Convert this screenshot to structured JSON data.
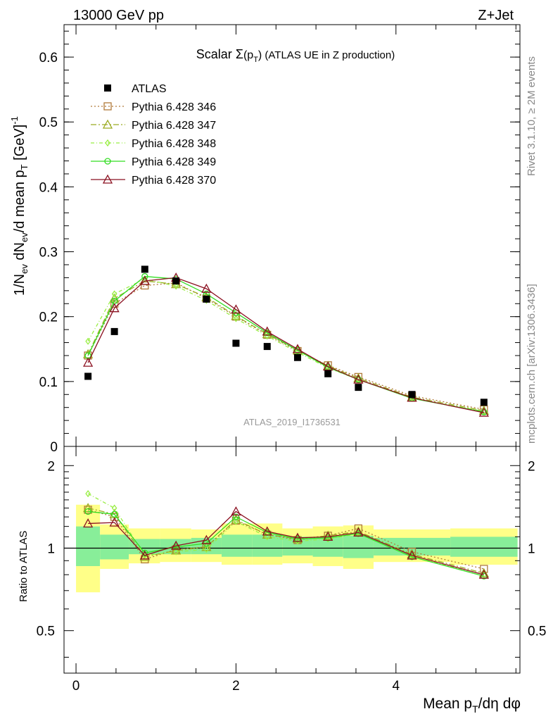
{
  "header": {
    "left": "13000 GeV pp",
    "right": "Z+Jet"
  },
  "side_labels": {
    "rivet": "Rivet 3.1.10, ≥ 2M events",
    "mcplots": "mcplots.cern.ch [arXiv:1306.3436]"
  },
  "chart_data": [
    {
      "type": "scatter",
      "panel": "main",
      "title": "Scalar Σ(pT) (ATLAS UE in Z production)",
      "watermark": "ATLAS_2019_I1736531",
      "xlabel": "Mean pT/dη dφ",
      "ylabel": "1/Nev dNev/d mean pT [GeV]^-1",
      "xlim": [
        -0.15,
        5.55
      ],
      "ylim": [
        0,
        0.65
      ],
      "legend_position": "top-left",
      "x_ticks": [
        "0",
        "2",
        "4"
      ],
      "y_ticks": [
        "0",
        "0.1",
        "0.2",
        "0.3",
        "0.4",
        "0.5",
        "0.6"
      ],
      "x": [
        0.15,
        0.48,
        0.86,
        1.25,
        1.63,
        2.0,
        2.39,
        2.77,
        3.15,
        3.53,
        4.2,
        5.1
      ],
      "series": [
        {
          "name": "ATLAS",
          "style": "data",
          "color": "#000000",
          "values": [
            0.108,
            0.177,
            0.273,
            0.255,
            0.227,
            0.159,
            0.154,
            0.137,
            0.112,
            0.091,
            0.08,
            0.068
          ]
        },
        {
          "name": "Pythia 6.428 346",
          "style": "dotted",
          "marker": "square",
          "color": "#b07a3a",
          "values": [
            0.14,
            0.22,
            0.248,
            0.252,
            0.228,
            0.2,
            0.172,
            0.147,
            0.125,
            0.107,
            0.078,
            0.057
          ]
        },
        {
          "name": "Pythia 6.428 347",
          "style": "dashdot",
          "marker": "triangle",
          "color": "#9aaa20",
          "values": [
            0.142,
            0.228,
            0.255,
            0.25,
            0.23,
            0.201,
            0.173,
            0.148,
            0.124,
            0.105,
            0.076,
            0.055
          ]
        },
        {
          "name": "Pythia 6.428 348",
          "style": "dashdot2",
          "marker": "diamond",
          "color": "#99ee44",
          "values": [
            0.162,
            0.235,
            0.258,
            0.247,
            0.225,
            0.197,
            0.17,
            0.145,
            0.121,
            0.103,
            0.074,
            0.054
          ]
        },
        {
          "name": "Pythia 6.428 349",
          "style": "solid",
          "marker": "circle",
          "color": "#33dd22",
          "values": [
            0.14,
            0.224,
            0.262,
            0.258,
            0.235,
            0.206,
            0.175,
            0.148,
            0.122,
            0.103,
            0.074,
            0.053
          ]
        },
        {
          "name": "Pythia 6.428 370",
          "style": "solid",
          "marker": "triangle",
          "color": "#8b1020",
          "values": [
            0.129,
            0.213,
            0.255,
            0.26,
            0.243,
            0.211,
            0.177,
            0.15,
            0.123,
            0.103,
            0.075,
            0.052
          ]
        }
      ]
    },
    {
      "type": "line",
      "panel": "ratio",
      "ylabel": "Ratio to ATLAS",
      "ylim": [
        0.35,
        2.35
      ],
      "log_y": true,
      "y_ticks": [
        "0.5",
        "1",
        "2"
      ],
      "x_bins": [
        [
          0.0,
          0.3
        ],
        [
          0.3,
          0.66
        ],
        [
          0.66,
          1.05
        ],
        [
          1.05,
          1.44
        ],
        [
          1.44,
          1.82
        ],
        [
          1.82,
          2.2
        ],
        [
          2.2,
          2.58
        ],
        [
          2.58,
          2.96
        ],
        [
          2.96,
          3.34
        ],
        [
          3.34,
          3.72
        ],
        [
          3.72,
          4.68
        ],
        [
          4.68,
          5.52
        ]
      ],
      "band_yellow": [
        [
          0.69,
          1.44
        ],
        [
          0.84,
          1.22
        ],
        [
          0.88,
          1.18
        ],
        [
          0.89,
          1.18
        ],
        [
          0.89,
          1.17
        ],
        [
          0.87,
          1.23
        ],
        [
          0.87,
          1.23
        ],
        [
          0.88,
          1.18
        ],
        [
          0.86,
          1.2
        ],
        [
          0.84,
          1.21
        ],
        [
          0.89,
          1.17
        ],
        [
          0.87,
          1.18
        ]
      ],
      "band_green": [
        [
          0.86,
          1.2
        ],
        [
          0.91,
          1.12
        ],
        [
          0.95,
          1.08
        ],
        [
          0.95,
          1.08
        ],
        [
          0.95,
          1.09
        ],
        [
          0.93,
          1.12
        ],
        [
          0.93,
          1.12
        ],
        [
          0.94,
          1.1
        ],
        [
          0.93,
          1.1
        ],
        [
          0.92,
          1.11
        ],
        [
          0.94,
          1.09
        ],
        [
          0.93,
          1.1
        ]
      ],
      "series": [
        {
          "name": "Pythia 6.428 346",
          "values": [
            1.38,
            1.3,
            0.91,
            0.99,
            1.01,
            1.26,
            1.12,
            1.07,
            1.11,
            1.18,
            0.97,
            0.84
          ]
        },
        {
          "name": "Pythia 6.428 347",
          "values": [
            1.4,
            1.33,
            0.93,
            0.98,
            1.01,
            1.27,
            1.12,
            1.08,
            1.11,
            1.15,
            0.95,
            0.81
          ]
        },
        {
          "name": "Pythia 6.428 348",
          "values": [
            1.58,
            1.4,
            0.94,
            0.97,
            0.99,
            1.25,
            1.1,
            1.06,
            1.08,
            1.13,
            0.93,
            0.8
          ]
        },
        {
          "name": "Pythia 6.428 349",
          "values": [
            1.36,
            1.33,
            0.96,
            1.01,
            1.04,
            1.3,
            1.14,
            1.08,
            1.09,
            1.13,
            0.93,
            0.79
          ]
        },
        {
          "name": "Pythia 6.428 370",
          "values": [
            1.23,
            1.24,
            0.94,
            1.02,
            1.07,
            1.36,
            1.15,
            1.09,
            1.1,
            1.14,
            0.94,
            0.8
          ]
        }
      ]
    }
  ]
}
